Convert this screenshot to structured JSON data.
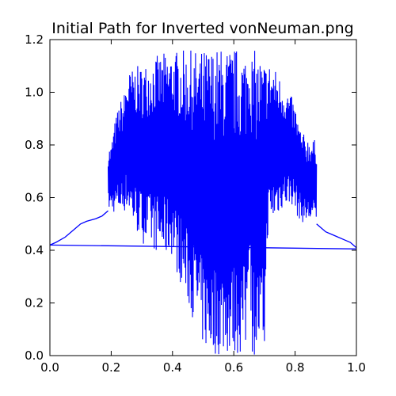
{
  "chart_data": {
    "type": "line",
    "title": "Initial Path for Inverted vonNeuman.png",
    "xlabel": "",
    "ylabel": "",
    "xlim": [
      0.0,
      1.0
    ],
    "ylim": [
      0.0,
      1.2
    ],
    "grid": false,
    "legend": "none",
    "color": "#0000ff",
    "x_ticks": [
      "0.0",
      "0.2",
      "0.4",
      "0.6",
      "0.8",
      "1.0"
    ],
    "y_ticks": [
      "0.0",
      "0.2",
      "0.4",
      "0.6",
      "0.8",
      "1.0",
      "1.2"
    ],
    "series": [
      {
        "x": [
          1.0,
          0.0
        ],
        "y": [
          0.405,
          0.42
        ]
      },
      {
        "x": [
          0.0,
          0.02,
          0.05,
          0.08,
          0.1,
          0.12,
          0.15,
          0.17,
          0.19
        ],
        "y": [
          0.42,
          0.43,
          0.45,
          0.48,
          0.5,
          0.51,
          0.52,
          0.53,
          0.55
        ]
      },
      {
        "x": [
          0.87,
          0.88,
          0.9,
          0.92,
          0.94,
          0.96,
          0.98,
          1.0
        ],
        "y": [
          0.5,
          0.49,
          0.47,
          0.46,
          0.45,
          0.44,
          0.43,
          0.41
        ]
      }
    ],
    "envelope": {
      "x": [
        0.19,
        0.2,
        0.21,
        0.22,
        0.23,
        0.24,
        0.25,
        0.26,
        0.27,
        0.28,
        0.29,
        0.3,
        0.31,
        0.32,
        0.33,
        0.34,
        0.35,
        0.36,
        0.37,
        0.38,
        0.39,
        0.4,
        0.41,
        0.42,
        0.43,
        0.44,
        0.45,
        0.46,
        0.47,
        0.48,
        0.49,
        0.5,
        0.51,
        0.52,
        0.53,
        0.54,
        0.55,
        0.56,
        0.57,
        0.58,
        0.59,
        0.6,
        0.61,
        0.62,
        0.63,
        0.64,
        0.65,
        0.66,
        0.67,
        0.68,
        0.69,
        0.7,
        0.71,
        0.72,
        0.73,
        0.74,
        0.75,
        0.76,
        0.77,
        0.78,
        0.79,
        0.8,
        0.81,
        0.82,
        0.83,
        0.84,
        0.85,
        0.86,
        0.87
      ],
      "upper": [
        0.79,
        0.8,
        0.88,
        0.93,
        0.97,
        0.98,
        1.06,
        1.08,
        1.09,
        1.1,
        1.1,
        1.1,
        1.11,
        1.12,
        1.13,
        1.14,
        1.14,
        1.14,
        1.15,
        1.15,
        1.15,
        1.16,
        1.16,
        1.16,
        1.16,
        1.16,
        1.16,
        1.16,
        1.16,
        1.16,
        1.16,
        1.16,
        1.17,
        1.17,
        1.17,
        1.17,
        1.17,
        1.17,
        1.17,
        1.17,
        1.17,
        1.17,
        1.17,
        1.17,
        1.17,
        1.17,
        1.17,
        1.16,
        1.16,
        1.15,
        1.14,
        1.13,
        1.12,
        1.11,
        1.1,
        1.08,
        1.06,
        1.04,
        1.02,
        1.0,
        0.98,
        0.95,
        0.9,
        0.85,
        0.84,
        0.83,
        0.83,
        0.82,
        0.82
      ],
      "lower": [
        0.55,
        0.55,
        0.54,
        0.54,
        0.54,
        0.54,
        0.55,
        0.53,
        0.49,
        0.47,
        0.45,
        0.43,
        0.42,
        0.41,
        0.4,
        0.4,
        0.39,
        0.38,
        0.37,
        0.37,
        0.38,
        0.38,
        0.32,
        0.3,
        0.26,
        0.22,
        0.19,
        0.16,
        0.13,
        0.1,
        0.06,
        0.03,
        0.01,
        0.0,
        0.0,
        0.0,
        0.0,
        0.0,
        0.0,
        0.0,
        0.0,
        0.0,
        0.0,
        0.0,
        0.0,
        0.0,
        0.4,
        0.0,
        0.0,
        0.0,
        0.0,
        0.0,
        0.45,
        0.48,
        0.5,
        0.52,
        0.54,
        0.56,
        0.56,
        0.57,
        0.57,
        0.55,
        0.52,
        0.51,
        0.5,
        0.5,
        0.5,
        0.5,
        0.5
      ]
    }
  }
}
